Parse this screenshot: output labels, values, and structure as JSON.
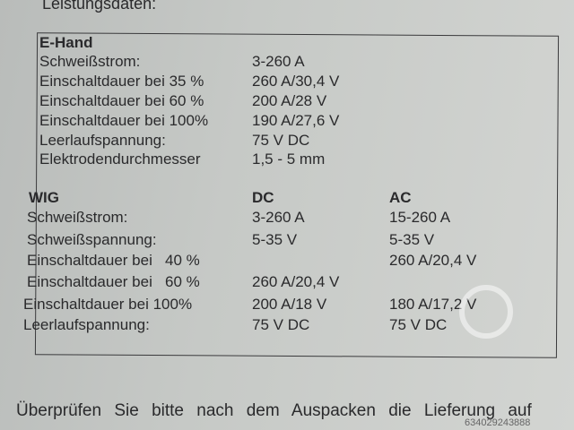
{
  "heading": "Leistungsdaten:",
  "ehand": {
    "title": "E-Hand",
    "rows": [
      {
        "label": "Schweißstrom:",
        "value": "3-260 A"
      },
      {
        "label": "Einschaltdauer bei 35 %",
        "value": "260 A/30,4 V"
      },
      {
        "label": "Einschaltdauer bei 60 %",
        "value": "200 A/28 V"
      },
      {
        "label": "Einschaltdauer bei 100%",
        "value": "190 A/27,6 V"
      },
      {
        "label": "Leerlaufspannung:",
        "value": "75 V DC"
      },
      {
        "label": "Elektrodendurchmesser",
        "value": "1,5 - 5 mm"
      }
    ]
  },
  "wig": {
    "title": "WIG",
    "dc": "DC",
    "ac": "AC",
    "rows": [
      {
        "label": "Schweißstrom:",
        "dc": "3-260 A",
        "ac": "15-260 A"
      },
      {
        "label": "Schweißspannung:",
        "dc": "5-35 V",
        "ac": "5-35 V"
      },
      {
        "label": "Einschaltdauer bei   40 %",
        "dc": "",
        "ac": "260 A/20,4 V"
      },
      {
        "label": "Einschaltdauer bei   60 %",
        "dc": "260 A/20,4 V",
        "ac": ""
      },
      {
        "label": "Einschaltdauer bei 100%",
        "dc": "200 A/18 V",
        "ac": "180 A/17,2 V"
      },
      {
        "label": "Leerlaufspannung:",
        "dc": "75 V DC",
        "ac": "75 V DC"
      }
    ]
  },
  "footer": "Überprüfen Sie bitte nach dem Auspacken die Lieferung auf",
  "watermark": "634029243888"
}
